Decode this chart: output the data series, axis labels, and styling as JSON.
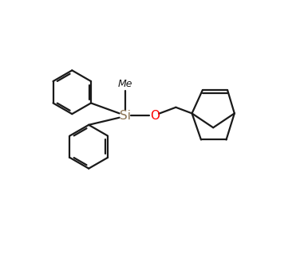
{
  "bg_color": "#ffffff",
  "line_color": "#1a1a1a",
  "si_color": "#8B7355",
  "o_color": "#ff0000",
  "line_width": 1.6,
  "si_fontsize": 11,
  "o_fontsize": 11,
  "me_fontsize": 9,
  "figsize": [
    3.86,
    3.19
  ],
  "dpi": 100,
  "xlim": [
    0,
    10
  ],
  "ylim": [
    0,
    8
  ]
}
